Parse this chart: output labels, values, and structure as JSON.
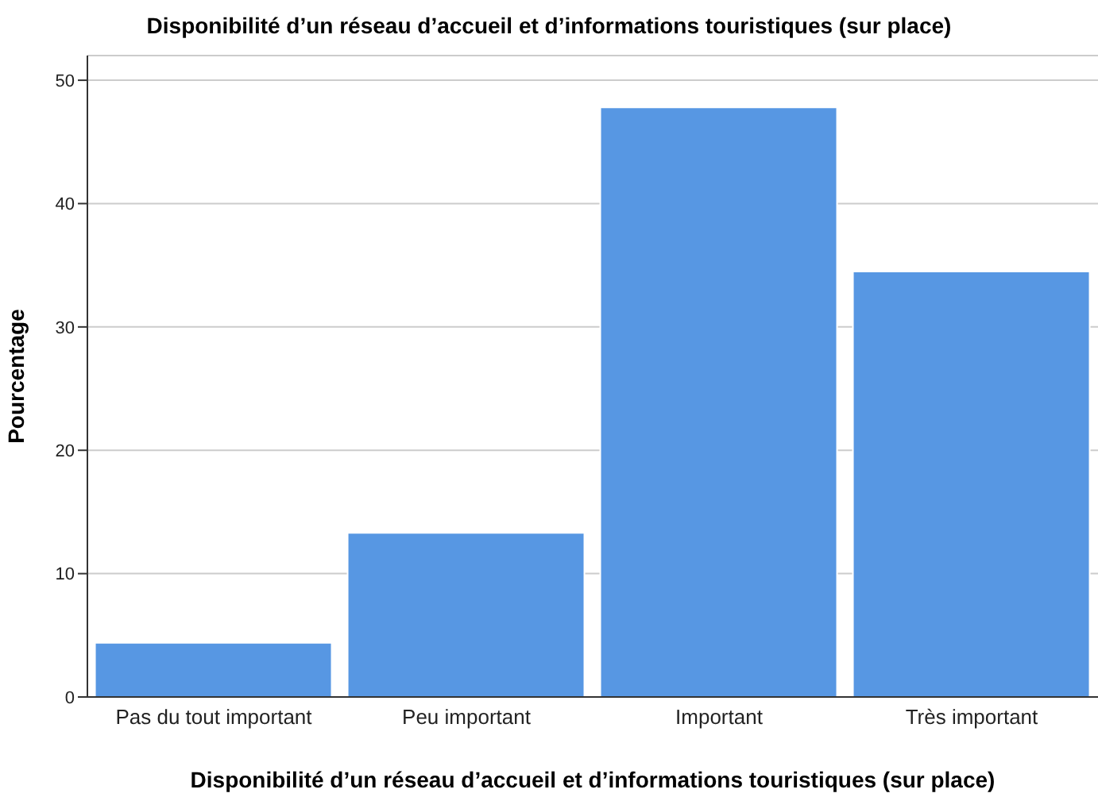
{
  "chart_data": {
    "type": "bar",
    "title": "Disponibilité d’un réseau d’accueil et d’informations touristiques (sur place)",
    "xlabel": "Disponibilité d’un réseau d’accueil et d’informations touristiques (sur place)",
    "ylabel": "Pourcentage",
    "categories": [
      "Pas du tout important",
      "Peu important",
      "Important",
      "Très important"
    ],
    "values": [
      4.4,
      13.3,
      47.8,
      34.5
    ],
    "color": "#5797e3",
    "ylim": [
      0,
      52
    ],
    "yticks": [
      0,
      10,
      20,
      30,
      40,
      50
    ],
    "grid": "y"
  }
}
